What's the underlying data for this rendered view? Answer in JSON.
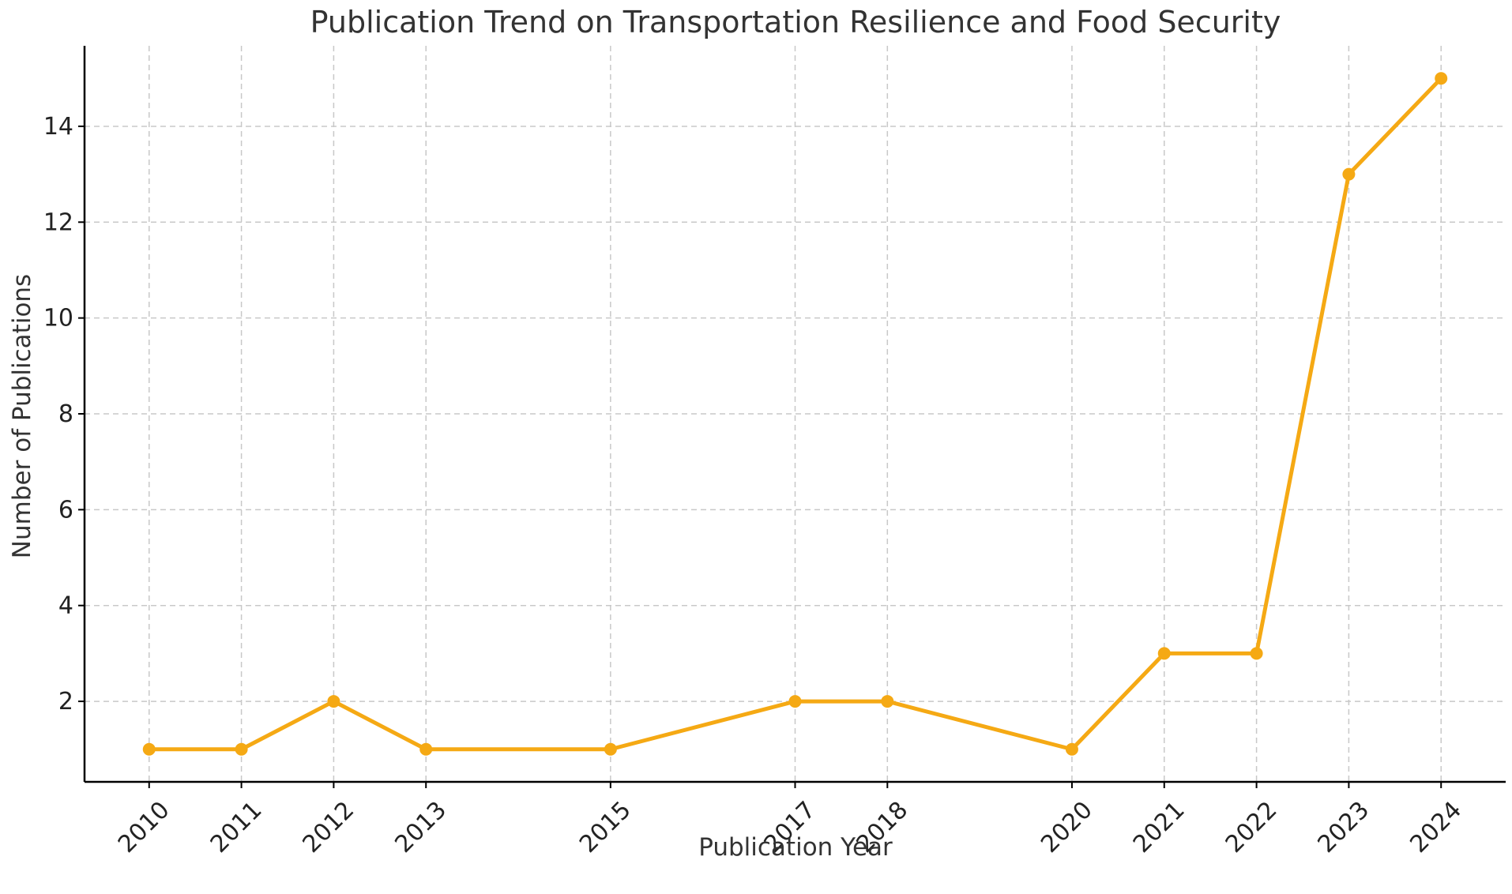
{
  "chart_data": {
    "type": "line",
    "title": "Publication Trend on Transportation Resilience and Food Security",
    "xlabel": "Publication Year",
    "ylabel": "Number of Publications",
    "x": [
      2010,
      2011,
      2012,
      2013,
      2015,
      2017,
      2018,
      2020,
      2021,
      2022,
      2023,
      2024
    ],
    "x_tick_labels": [
      "2010",
      "2011",
      "2012",
      "2013",
      "2015",
      "2017",
      "2018",
      "2020",
      "2021",
      "2022",
      "2023",
      "2024"
    ],
    "series": [
      {
        "values": [
          1,
          1,
          2,
          1,
          1,
          2,
          2,
          1,
          3,
          3,
          13,
          15
        ],
        "color": "#F5A914",
        "marker": "circle"
      }
    ],
    "y_ticks": [
      2,
      4,
      6,
      8,
      10,
      12,
      14
    ],
    "y_tick_labels": [
      "2",
      "4",
      "6",
      "8",
      "10",
      "12",
      "14"
    ],
    "xlim": [
      2009.3,
      2024.7
    ],
    "ylim": [
      0.32,
      15.68
    ],
    "grid": true,
    "x_ticks_rotated_deg": 45
  }
}
